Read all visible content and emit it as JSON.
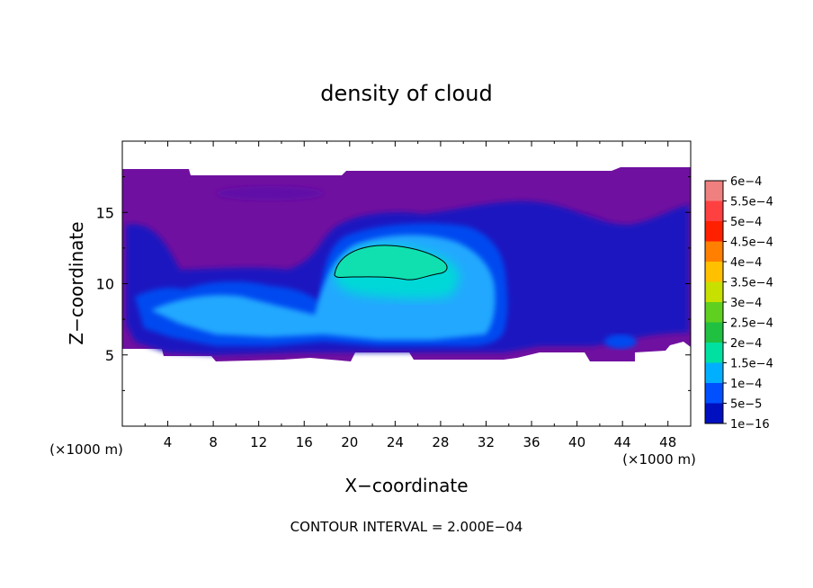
{
  "chart_data": {
    "type": "heatmap",
    "title": "density of cloud",
    "xlabel": "X−coordinate",
    "ylabel": "Z−coordinate",
    "x_unit_label_left": "(×1000 m)",
    "x_unit_label_right": "(×1000 m)",
    "footer": "CONTOUR INTERVAL = 2.000E−04",
    "xlim": [
      0,
      50
    ],
    "ylim": [
      0,
      20
    ],
    "x_ticks": [
      4,
      8,
      12,
      16,
      20,
      24,
      28,
      32,
      36,
      40,
      44,
      48
    ],
    "x_tick_labels": [
      "4",
      "8",
      "12",
      "16",
      "20",
      "24",
      "28",
      "32",
      "36",
      "40",
      "44",
      "48"
    ],
    "y_ticks": [
      5,
      10,
      15
    ],
    "y_tick_labels": [
      "5",
      "10",
      "15"
    ],
    "colorbar": {
      "labels": [
        "6e−4",
        "5.5e−4",
        "5e−4",
        "4.5e−4",
        "4e−4",
        "3.5e−4",
        "3e−4",
        "2.5e−4",
        "2e−4",
        "1.5e−4",
        "1e−4",
        "5e−5",
        "1e−16"
      ],
      "colors": [
        "#f08080",
        "#ff4040",
        "#ff2000",
        "#ff8000",
        "#ffc000",
        "#c8e000",
        "#60d020",
        "#20c040",
        "#00e0a0",
        "#00b0ff",
        "#0050ff",
        "#0010c0",
        "#7010a0"
      ]
    },
    "regions": [
      {
        "level": "1e-16",
        "description_x": [
          0,
          50
        ],
        "description_z": [
          4.5,
          17.8
        ]
      },
      {
        "level": "1e-4",
        "x": [
          1,
          34
        ],
        "z": [
          5,
          11
        ]
      },
      {
        "level": "2e-4",
        "x": [
          18.5,
          29.5
        ],
        "z": [
          10.2,
          12.6
        ]
      }
    ]
  }
}
